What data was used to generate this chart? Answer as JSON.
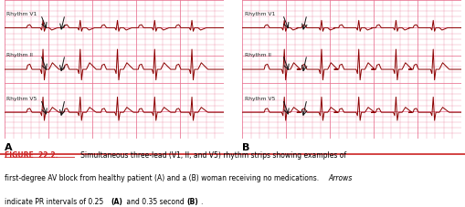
{
  "bg_color": "#f8c8d0",
  "grid_color": "#e87090",
  "ecg_color": "#8B0000",
  "label_color": "#222222",
  "fig_bg": "#ffffff",
  "panel_A_label": "A",
  "panel_B_label": "B",
  "rhythm_labels": [
    "Rhythm V1",
    "Rhythm II",
    "Rhythm V5"
  ],
  "caption_figure": "FIGURE  22.2.",
  "caption_main1": "   Simultaneous three-lead (V1, II, and V5) rhythm strips showing examples of",
  "caption_main2": "first-degree AV block from healthy patient (A) and a (B) woman receiving no medications. ",
  "caption_italic": "Arrows",
  "caption_line2a": "indicate PR intervals of 0.25 ",
  "caption_bold_A": "(A)",
  "caption_line2b": " and 0.35 second ",
  "caption_bold_B": "(B)",
  "caption_end": ".",
  "separator_color": "#cc2222",
  "arrow_color": "#111111"
}
